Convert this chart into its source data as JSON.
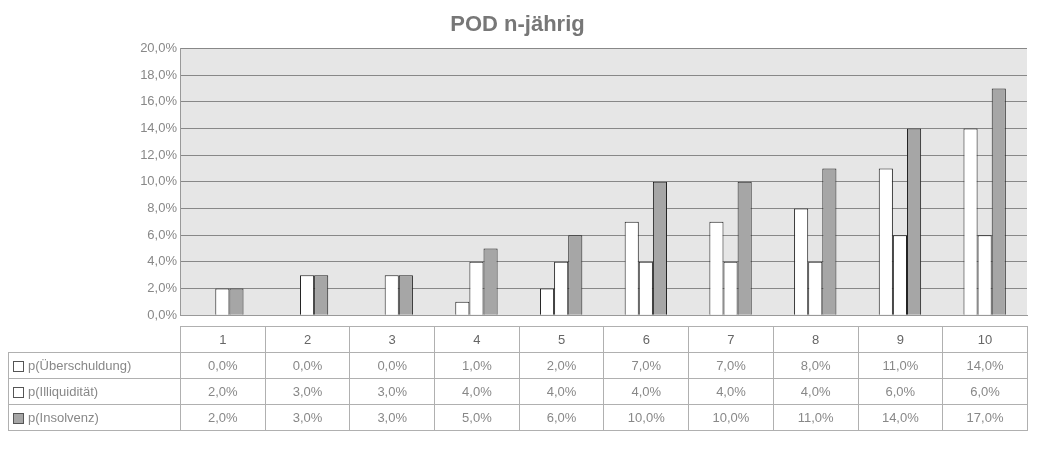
{
  "chart_data": {
    "type": "bar",
    "title": "POD n-jährig",
    "categories": [
      "1",
      "2",
      "3",
      "4",
      "5",
      "6",
      "7",
      "8",
      "9",
      "10"
    ],
    "series": [
      {
        "name": "p(Überschuldung)",
        "color": "#ffffff",
        "values": [
          0,
          0,
          0,
          1,
          2,
          7,
          7,
          8,
          11,
          14
        ],
        "value_labels": [
          "0,0%",
          "0,0%",
          "0,0%",
          "1,0%",
          "2,0%",
          "7,0%",
          "7,0%",
          "8,0%",
          "11,0%",
          "14,0%"
        ]
      },
      {
        "name": "p(Illiquidität)",
        "color": "#ffffff",
        "values": [
          2,
          3,
          3,
          4,
          4,
          4,
          4,
          4,
          6,
          6
        ],
        "value_labels": [
          "2,0%",
          "3,0%",
          "3,0%",
          "4,0%",
          "4,0%",
          "4,0%",
          "4,0%",
          "4,0%",
          "6,0%",
          "6,0%"
        ]
      },
      {
        "name": "p(Insolvenz)",
        "color": "#a6a6a6",
        "values": [
          2,
          3,
          3,
          5,
          6,
          10,
          10,
          11,
          14,
          17
        ],
        "value_labels": [
          "2,0%",
          "3,0%",
          "3,0%",
          "5,0%",
          "6,0%",
          "10,0%",
          "10,0%",
          "11,0%",
          "14,0%",
          "17,0%"
        ]
      }
    ],
    "ylim": [
      0,
      20
    ],
    "yticks": [
      {
        "value": 0,
        "label": "0,0%"
      },
      {
        "value": 2,
        "label": "2,0%"
      },
      {
        "value": 4,
        "label": "4,0%"
      },
      {
        "value": 6,
        "label": "6,0%"
      },
      {
        "value": 8,
        "label": "8,0%"
      },
      {
        "value": 10,
        "label": "10,0%"
      },
      {
        "value": 12,
        "label": "12,0%"
      },
      {
        "value": 14,
        "label": "14,0%"
      },
      {
        "value": 16,
        "label": "16,0%"
      },
      {
        "value": 18,
        "label": "18,0%"
      },
      {
        "value": 20,
        "label": "20,0%"
      }
    ],
    "grid": "y",
    "legend": "bottom left"
  }
}
